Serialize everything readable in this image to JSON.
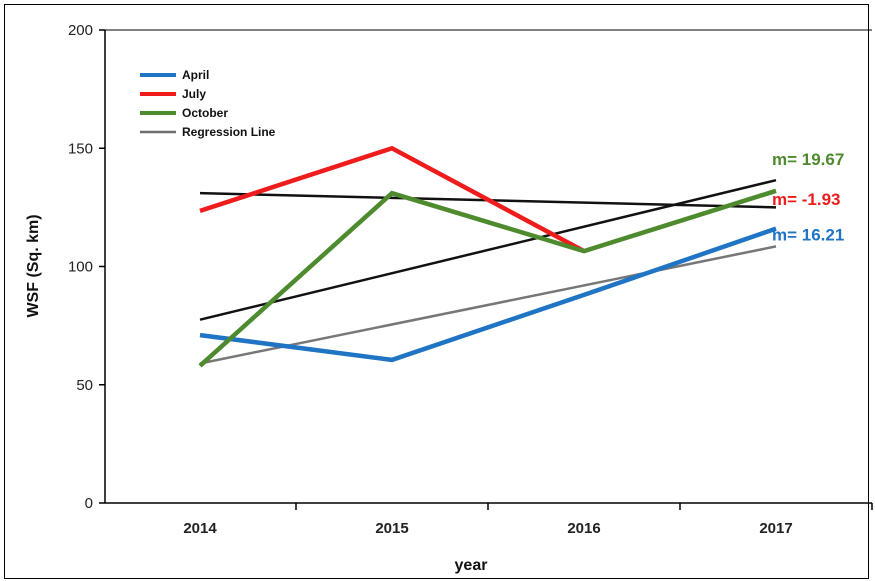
{
  "chart_data": {
    "type": "line",
    "xlabel": "year",
    "ylabel": "WSF (Sq. km)",
    "categories": [
      "2014",
      "2015",
      "2016",
      "2017"
    ],
    "ylim": [
      0,
      200
    ],
    "yticks": [
      0,
      50,
      100,
      150,
      200
    ],
    "grid": false,
    "legend_position": "top-left",
    "series": [
      {
        "name": "April",
        "color": "#1f74c4",
        "values": [
          71,
          60.5,
          88,
          116
        ]
      },
      {
        "name": "July",
        "color": "#ee1c1c",
        "values": [
          123.5,
          150,
          106.5,
          null
        ]
      },
      {
        "name": "October",
        "color": "#4e8a2e",
        "values": [
          58,
          131,
          106.5,
          132
        ]
      }
    ],
    "legend": [
      {
        "label": "April",
        "color": "#1f74c4"
      },
      {
        "label": "July",
        "color": "#ee1c1c"
      },
      {
        "label": "October",
        "color": "#4e8a2e"
      },
      {
        "label": "Regression Line",
        "color": "#6e6e6e"
      }
    ],
    "regression_lines": [
      {
        "of": "October",
        "color": "#111111",
        "y_start": 77.5,
        "y_end": 136.5
      },
      {
        "of": "July",
        "color": "#111111",
        "y_start": 131,
        "y_end": 125
      },
      {
        "of": "April",
        "color": "#777777",
        "y_start": 59,
        "y_end": 108.5
      }
    ],
    "annotations": [
      {
        "text": "m= 19.67",
        "color": "#4e8a2e",
        "at_category": "2017",
        "y": 143
      },
      {
        "text": "m= -1.93",
        "color": "#ee1c1c",
        "at_category": "2017",
        "y": 126
      },
      {
        "text": "m= 16.21",
        "color": "#1f74c4",
        "at_category": "2017",
        "y": 111
      }
    ]
  }
}
